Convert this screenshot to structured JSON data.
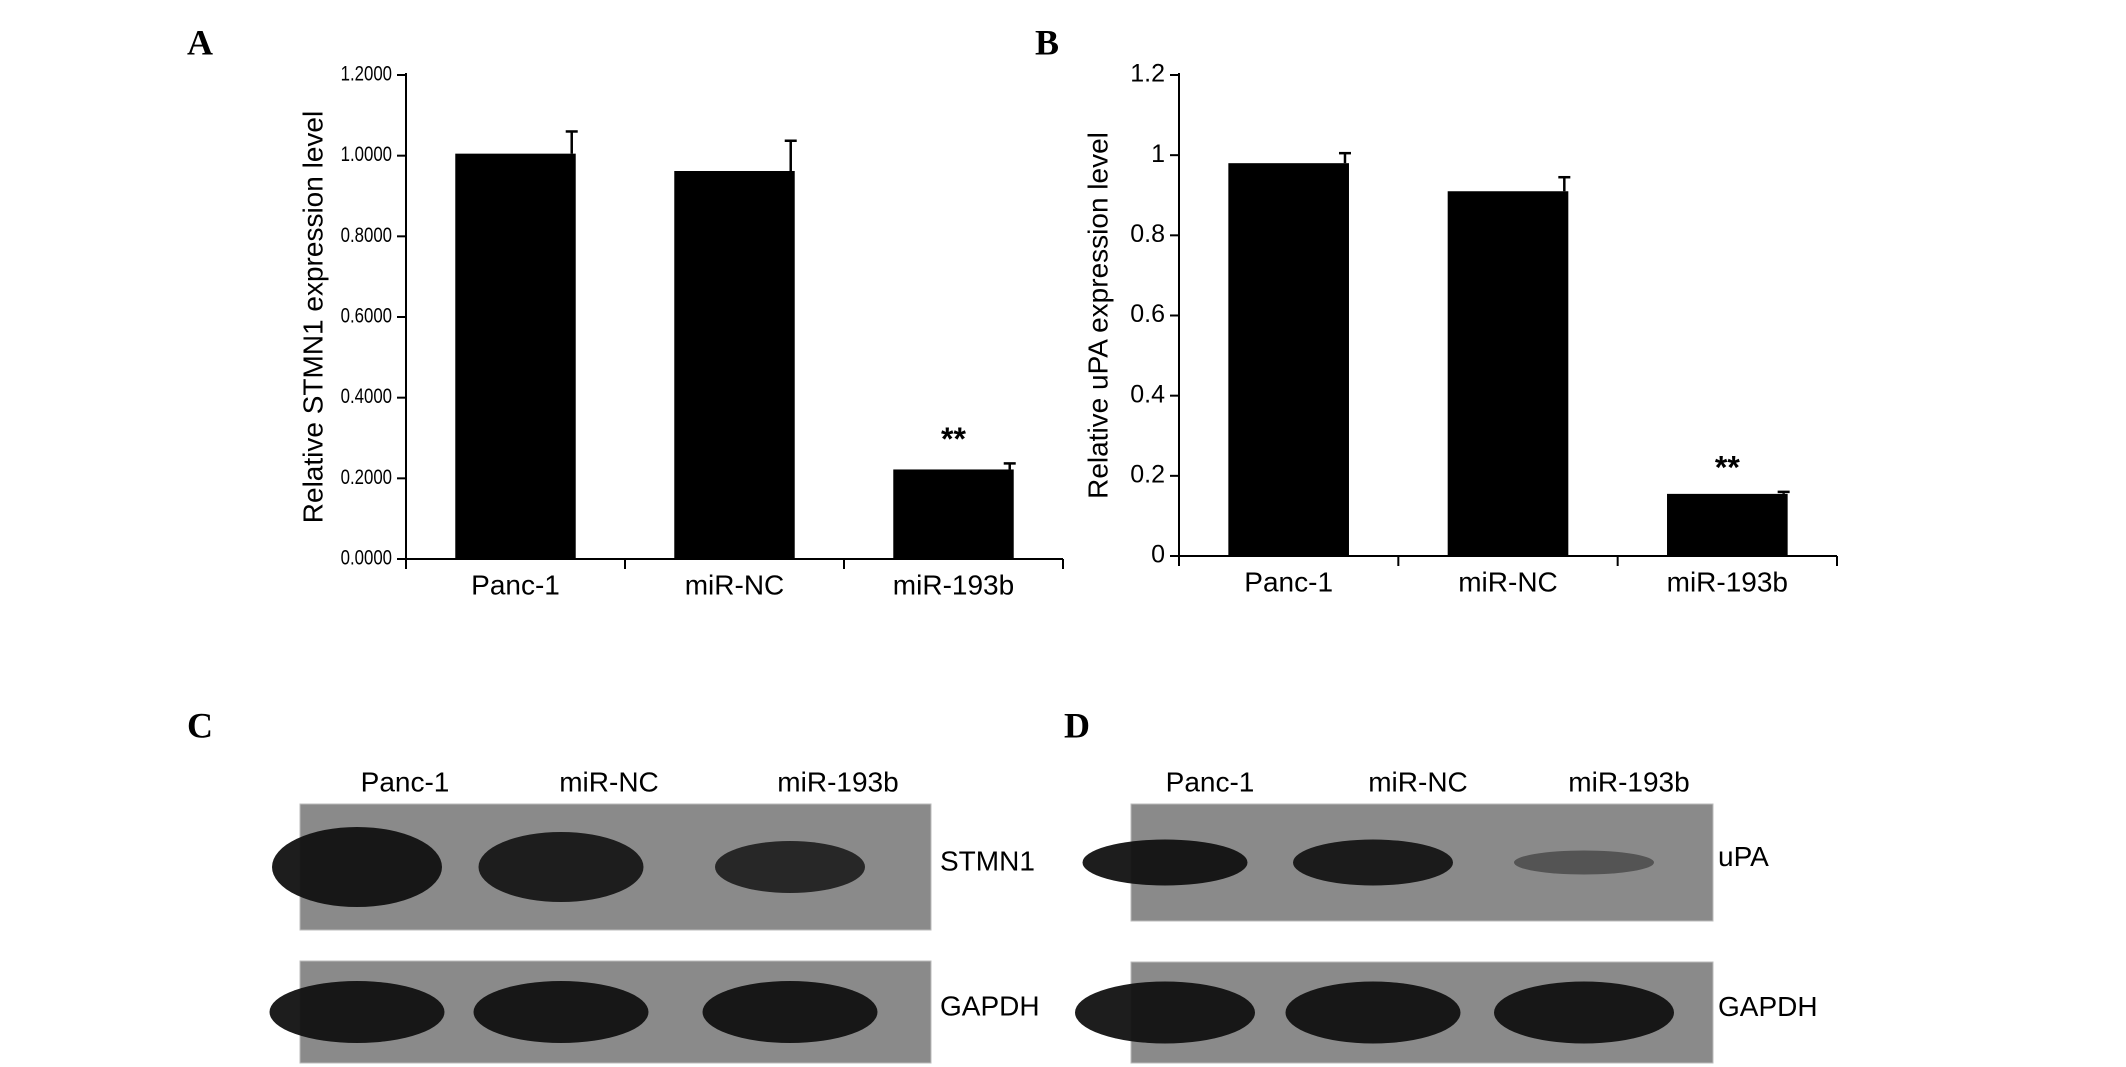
{
  "chart_data": [
    {
      "type": "bar",
      "panel_label": "A",
      "ylabel": "Relative STMN1 expression level",
      "categories": [
        "Panc-1",
        "miR-NC",
        "miR-193b"
      ],
      "values": [
        1.005,
        0.962,
        0.222
      ],
      "errors": [
        0.055,
        0.075,
        0.015
      ],
      "annotations": [
        null,
        null,
        "**"
      ],
      "color": "#000000",
      "ylim": [
        0,
        1.2
      ],
      "yticks": [
        {
          "value": 0,
          "label": "0.0000"
        },
        {
          "value": 0.2,
          "label": "0.2000"
        },
        {
          "value": 0.4,
          "label": "0.4000"
        },
        {
          "value": 0.6,
          "label": "0.6000"
        },
        {
          "value": 0.8,
          "label": "0.8000"
        },
        {
          "value": 1,
          "label": "1.0000"
        },
        {
          "value": 1.2,
          "label": "1.2000"
        }
      ],
      "grid": false
    },
    {
      "type": "bar",
      "panel_label": "B",
      "ylabel": "Relative uPA expression level",
      "categories": [
        "Panc-1",
        "miR-NC",
        "miR-193b"
      ],
      "values": [
        0.98,
        0.91,
        0.155
      ],
      "errors": [
        0.025,
        0.035,
        0.005
      ],
      "annotations": [
        null,
        null,
        "**"
      ],
      "color": "#000000",
      "ylim": [
        0,
        1.2
      ],
      "yticks": [
        0,
        0.2,
        0.4,
        0.6,
        0.8,
        1,
        1.2
      ],
      "grid": false
    }
  ],
  "blots": [
    {
      "panel_label": "C",
      "lanes": [
        "Panc-1",
        "miR-NC",
        "miR-193b"
      ],
      "rows": [
        "STMN1",
        "GAPDH"
      ]
    },
    {
      "panel_label": "D",
      "lanes": [
        "Panc-1",
        "miR-NC",
        "miR-193b"
      ],
      "rows": [
        "uPA",
        "GAPDH"
      ]
    }
  ]
}
